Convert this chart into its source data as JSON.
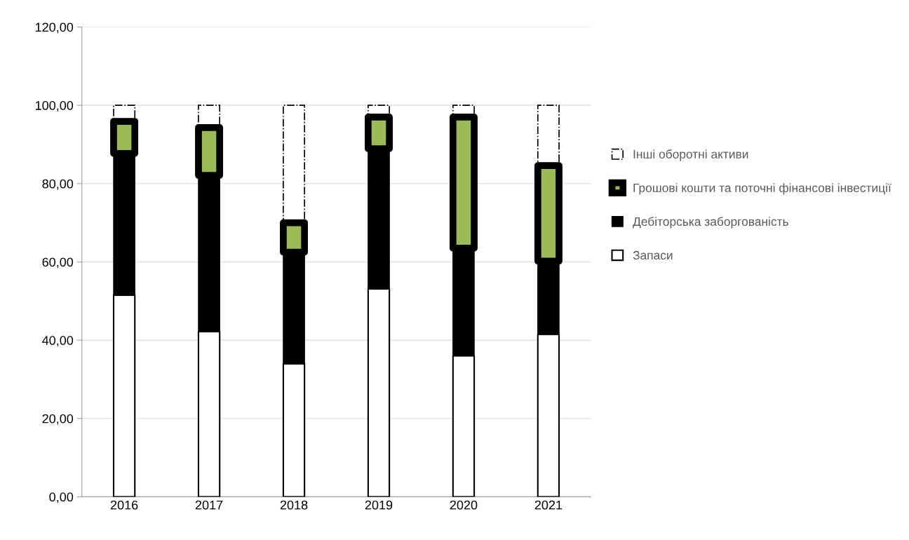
{
  "chart_data": {
    "type": "bar",
    "stacked": true,
    "categories": [
      "2016",
      "2017",
      "2018",
      "2019",
      "2020",
      "2021"
    ],
    "series": [
      {
        "name": "Запаси",
        "color": "#ffffff",
        "values": [
          51.5,
          42.2,
          34.0,
          53.1,
          36.0,
          41.5
        ]
      },
      {
        "name": "Дебіторська заборгованість",
        "color": "#000000",
        "values": [
          36.2,
          39.9,
          28.5,
          35.8,
          27.5,
          18.7
        ]
      },
      {
        "name": "Грошові кошти та поточні фінансові інвестиції",
        "color": "#9bbb59",
        "values": [
          8.2,
          12.2,
          7.5,
          8.1,
          33.5,
          24.4
        ]
      },
      {
        "name": "Інші оборотні активи",
        "color": "#ffffff",
        "values": [
          4.1,
          5.7,
          30.0,
          3.0,
          3.0,
          15.4
        ]
      }
    ],
    "ylim": [
      0,
      120
    ],
    "yticks": [
      {
        "value": 0,
        "label": "0,00"
      },
      {
        "value": 20,
        "label": "20,00"
      },
      {
        "value": 40,
        "label": "40,00"
      },
      {
        "value": 60,
        "label": "60,00"
      },
      {
        "value": 80,
        "label": "80,00"
      },
      {
        "value": 100,
        "label": "100,00"
      },
      {
        "value": 120,
        "label": "120,00"
      }
    ],
    "grid": "y",
    "legend": "right"
  }
}
